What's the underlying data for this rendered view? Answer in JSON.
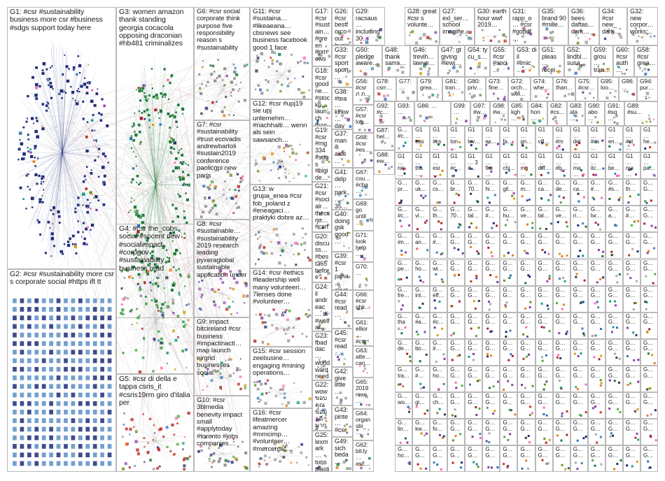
{
  "colors": {
    "background": "#ffffff",
    "box_border": "#b9b9b9",
    "edge": "#c7c7c7",
    "palette": [
      "#1f2d7a",
      "#2f6fb5",
      "#1e7a3a",
      "#58a84a",
      "#c0392b",
      "#7d3c98",
      "#d4a017",
      "#16a085",
      "#8e44ad",
      "#e67e22",
      "#2c3e50",
      "#a9a9a9",
      "#ff69b4",
      "#6b8e23",
      "#4682b4",
      "#b22222"
    ]
  },
  "groups": [
    {
      "id": "G1",
      "text": "G1: #csr #sustainability business more csr #business #sdgs support today here",
      "color": "#1f2d7a",
      "kind": "ring"
    },
    {
      "id": "G2",
      "text": "G2: #csr #sustainability more csr s corporate social #https ift tt",
      "color": "#3a6fb0",
      "kind": "gridnodes"
    },
    {
      "id": "G3",
      "text": "G3: women amazon thank standing georgia cocacola opposing draconian #hb481 criminalizes",
      "color": "#1e7a3a",
      "kind": "ring"
    },
    {
      "id": "G4",
      "text": "G4: #csr the_cobs social #socent new #socialimpact #corpgov #sustainability business read",
      "color": "#3b9a3f",
      "kind": "cloud"
    },
    {
      "id": "G5",
      "text": "G5: #csr di della e tappa csris_it #csris19rm giro d'italia per",
      "color": "#c0282b",
      "kind": "cloud"
    },
    {
      "id": "G6",
      "text": "G6: #csr social corporate think purpose five responsibility reason s #sustainability",
      "color": "#7a7a7a",
      "kind": "cloud"
    },
    {
      "id": "G7",
      "text": "G7: #csr #sustainability #trust ecovadis andrewbartoli #sustain2019 conference paolicgpi new paris",
      "color": "#888888",
      "kind": "cloud"
    },
    {
      "id": "G8",
      "text": "G8: #csr #sustainable… #sustainability 2019 research leading pyxeraglobal sustainable application under",
      "color": "#9b59b6",
      "kind": "cloud"
    },
    {
      "id": "G9",
      "text": "G9: impact bitcireland #csr business #impactinacti… map launch eirgrid businesses social",
      "color": "#8e8e8e",
      "kind": "cloud"
    },
    {
      "id": "G10",
      "text": "G10: #csr 3blmedia benevity impact small #applytoday #toronto #jobs companies…",
      "color": "#7d7d7d",
      "kind": "cloud"
    },
    {
      "id": "G11",
      "text": "G11: #csr #sustaina… #likeaeana… cbsnews see business facebook good 1 face",
      "color": "#888888",
      "kind": "cloud"
    },
    {
      "id": "G12",
      "text": "G12: #csr #upj19 sie upj unternehm… #nachhalti… wenn als sein sawsanch…",
      "color": "#999999",
      "kind": "cloud"
    },
    {
      "id": "G13",
      "text": "G13: w grupa_enea #csr fob_poland z #eneagaci… praktyki dobre az…",
      "color": "#999999",
      "kind": "cloud"
    },
    {
      "id": "G14",
      "text": "G14: #csr #ethics #leadership well many volunteeri… 7lenses done #volunteer…",
      "color": "#999999",
      "kind": "cloud"
    },
    {
      "id": "G15",
      "text": "G15: #csr session zeebusine… engaging #mining operations…",
      "color": "#999999",
      "kind": "cloud"
    },
    {
      "id": "G16",
      "text": "G16: #csr lifeatmercer amazing #mmcimp… #volunteer… #mercerca…",
      "color": "#999999",
      "kind": "cloud"
    },
    {
      "id": "G17",
      "text": "G17: #csr #sustain… #green #prnews… caelusg… 2019",
      "color": "#999999",
      "kind": "cloud"
    },
    {
      "id": "G18",
      "text": "G18: #csr goodne… #stockp… launch thank d day last…",
      "color": "#999999",
      "kind": "cloud"
    },
    {
      "id": "G19",
      "text": "G19: #csr #mg334 #sdgs #bigide… #sustain…",
      "color": "#999999",
      "kind": "cloud"
    },
    {
      "id": "G20",
      "text": "G20: discuss… #best365 before represe…",
      "color": "#999999",
      "kind": "cloud"
    },
    {
      "id": "G21",
      "text": "G21: #csr #socialr… thecsrjo… #csrtren… corporat…",
      "color": "#999999",
      "kind": "cloud"
    },
    {
      "id": "G22",
      "text": "G22: wow ขอบคุณ ข้อมูลดีมาก ใจ ผู้…",
      "color": "#999999",
      "kind": "cloud"
    },
    {
      "id": "G23",
      "text": "G23: fbaddac… world want need…",
      "color": "#999999",
      "kind": "cloud"
    },
    {
      "id": "G24",
      "text": "G24: il andreac… di #welfar… e…",
      "color": "#999999",
      "kind": "cloud"
    },
    {
      "id": "G25",
      "text": "G25: lexmark… tons plastic…",
      "color": "#999999",
      "kind": "cloud"
    },
    {
      "id": "G26",
      "text": "G26: #csr bestforco out business…",
      "color": "#999999",
      "kind": "cloud"
    },
    {
      "id": "G27",
      "text": "G27: exl_ser… school imagine…",
      "color": "#999999",
      "kind": "cloud"
    },
    {
      "id": "G28",
      "text": "G28: great #csr s volunte…",
      "color": "#999999",
      "kind": "cloud"
    },
    {
      "id": "G29",
      "text": "G29: racsaus… including 30…",
      "color": "#999999",
      "kind": "cloud"
    },
    {
      "id": "G30",
      "text": "G30: earth hour wwf 2019…",
      "color": "#999999",
      "kind": "cloud"
    },
    {
      "id": "G31",
      "text": "G31: rapp_o… #csr #goodf…",
      "color": "#999999",
      "kind": "cloud"
    },
    {
      "id": "G32",
      "text": "G32: new corpor… works…",
      "color": "#999999",
      "kind": "cloud"
    },
    {
      "id": "G33",
      "text": "G33: #csr sport sport…",
      "color": "#999999",
      "kind": "cloud"
    },
    {
      "id": "G34",
      "text": "G34: #csr new_ dark…",
      "color": "#999999",
      "kind": "cloud"
    },
    {
      "id": "G35",
      "text": "G35: brand 90 #mille…",
      "color": "#999999",
      "kind": "cloud"
    },
    {
      "id": "G36",
      "text": "G36: bees daftas… dark…",
      "color": "#999999",
      "kind": "cloud"
    },
    {
      "id": "G37",
      "text": "G37: man ili aide…",
      "color": "#999999",
      "kind": "cloud"
    },
    {
      "id": "G38",
      "text": "G38: #tea… kirkw… day…",
      "color": "#999999",
      "kind": "cloud"
    },
    {
      "id": "G39",
      "text": "G39: #csr 1 pana… elect…",
      "color": "#999999",
      "kind": "cloud"
    },
    {
      "id": "G40",
      "text": "G40: doing gsk good…",
      "color": "#999999",
      "kind": "cloud"
    },
    {
      "id": "G41",
      "text": "G41: delp… park… 35…",
      "color": "#999999",
      "kind": "cloud"
    },
    {
      "id": "G42",
      "text": "G42: give little…",
      "color": "#999999",
      "kind": "cloud"
    },
    {
      "id": "G43",
      "text": "G43: pinte… #csr…",
      "color": "#999999",
      "kind": "cloud"
    },
    {
      "id": "G44",
      "text": "G44: #csr read…",
      "color": "#999999",
      "kind": "cloud"
    },
    {
      "id": "G45",
      "text": "G45: #csr read…",
      "color": "#999999",
      "kind": "cloud"
    },
    {
      "id": "G46",
      "text": "G46: trevih… lawye…",
      "color": "#999999",
      "kind": "cloud"
    },
    {
      "id": "G47",
      "text": "G47: gt giving #lewi…",
      "color": "#999999",
      "kind": "cloud"
    },
    {
      "id": "G48",
      "text": "G48: thank sams…",
      "color": "#999999",
      "kind": "cloud"
    },
    {
      "id": "G49",
      "text": "G49: sich beda…",
      "color": "#999999",
      "kind": "cloud"
    },
    {
      "id": "G50",
      "text": "G50: pledge aware…",
      "color": "#999999",
      "kind": "cloud"
    },
    {
      "id": "G51",
      "text": "G51: pleas… recei…",
      "color": "#999999",
      "kind": "cloud"
    },
    {
      "id": "G52",
      "text": "G52: lindbl… susa…",
      "color": "#999999",
      "kind": "cloud"
    },
    {
      "id": "G53",
      "text": "G53: di il #lmic…",
      "color": "#999999",
      "kind": "cloud"
    },
    {
      "id": "G54",
      "text": "G54: ty cu_s…",
      "color": "#999999",
      "kind": "cloud"
    },
    {
      "id": "G55",
      "text": "G55: #csr #soci…",
      "color": "#999999",
      "kind": "cloud"
    },
    {
      "id": "G56",
      "text": "G56: #csr ภ ภ…",
      "color": "#999999",
      "kind": "cloud"
    },
    {
      "id": "G57",
      "text": "G57: #csr log…",
      "color": "#999999",
      "kind": "cloud"
    },
    {
      "id": "G58",
      "text": "G58: #csr grea…",
      "color": "#999999",
      "kind": "cloud"
    },
    {
      "id": "G59",
      "text": "G59: grou… tran…",
      "color": "#999999",
      "kind": "cloud"
    },
    {
      "id": "G60",
      "text": "G60: #csr auth…",
      "color": "#999999",
      "kind": "cloud"
    },
    {
      "id": "G61",
      "text": "G61: ellior… #csr…",
      "color": "#999999",
      "kind": "cloud"
    },
    {
      "id": "G62",
      "text": "G62: bit.ly… asc…",
      "color": "#999999",
      "kind": "cloud"
    },
    {
      "id": "G63",
      "text": "G63: atte… can…",
      "color": "#999999",
      "kind": "cloud"
    },
    {
      "id": "G64",
      "text": "G64: organ sbi_…",
      "color": "#999999",
      "kind": "cloud"
    },
    {
      "id": "G65",
      "text": "G65: 2019 rese…",
      "color": "#999999",
      "kind": "cloud"
    },
    {
      "id": "G66",
      "text": "G66: #csr nhk…",
      "color": "#999999",
      "kind": "cloud"
    },
    {
      "id": "G67",
      "text": "G67: cou… #cha…",
      "color": "#999999",
      "kind": "cloud"
    },
    {
      "id": "G68",
      "text": "G68: #csr #es…",
      "color": "#999999",
      "kind": "cloud"
    },
    {
      "id": "G69",
      "text": "G69: go until…",
      "color": "#999999",
      "kind": "cloud"
    },
    {
      "id": "G70",
      "text": "G70: …",
      "color": "#999999",
      "kind": "cloud"
    },
    {
      "id": "G71",
      "text": "G71: look help…",
      "color": "#999999",
      "kind": "cloud"
    },
    {
      "id": "G72",
      "text": "G72: orch… wel…",
      "color": "#999999",
      "kind": "cloud"
    },
    {
      "id": "G73",
      "text": "G73: fine…",
      "color": "#999999",
      "kind": "cloud"
    },
    {
      "id": "G74",
      "text": "G74: whe…",
      "color": "#999999",
      "kind": "cloud"
    },
    {
      "id": "G75",
      "text": "G75: #csr…",
      "color": "#999999",
      "kind": "cloud"
    },
    {
      "id": "G76",
      "text": "G76: than…",
      "color": "#999999",
      "kind": "cloud"
    },
    {
      "id": "G77",
      "text": "G77: …",
      "color": "#999999",
      "kind": "cloud"
    },
    {
      "id": "G78",
      "text": "G78: csrr…",
      "color": "#999999",
      "kind": "cloud"
    },
    {
      "id": "G79",
      "text": "G79: grea…",
      "color": "#999999",
      "kind": "cloud"
    },
    {
      "id": "G80",
      "text": "G80: priv…",
      "color": "#999999",
      "kind": "cloud"
    },
    {
      "id": "G81",
      "text": "G81: tran…",
      "color": "#999999",
      "kind": "cloud"
    },
    {
      "id": "G82",
      "text": "G82: #cs…",
      "color": "#999999",
      "kind": "cloud"
    },
    {
      "id": "G83",
      "text": "G83: ala…",
      "color": "#999999",
      "kind": "cloud"
    },
    {
      "id": "G84",
      "text": "G84: hon…",
      "color": "#999999",
      "kind": "cloud"
    },
    {
      "id": "G85",
      "text": "G85: kgh…",
      "color": "#999999",
      "kind": "cloud"
    },
    {
      "id": "G86",
      "text": "G86: …",
      "color": "#999999",
      "kind": "cloud"
    },
    {
      "id": "G87",
      "text": "G87: hel…",
      "color": "#999999",
      "kind": "cloud"
    },
    {
      "id": "G88",
      "text": "G88: ew…",
      "color": "#999999",
      "kind": "cloud"
    },
    {
      "id": "G89",
      "text": "G89: #su…",
      "color": "#999999",
      "kind": "cloud"
    },
    {
      "id": "G90",
      "text": "G90: abo…",
      "color": "#999999",
      "kind": "cloud"
    },
    {
      "id": "G91",
      "text": "G91: #sq…",
      "color": "#999999",
      "kind": "cloud"
    },
    {
      "id": "G92",
      "text": "G92: #c…",
      "color": "#999999",
      "kind": "cloud"
    },
    {
      "id": "G93",
      "text": "G93: …",
      "color": "#999999",
      "kind": "cloud"
    },
    {
      "id": "G94",
      "text": "G94: pur…",
      "color": "#999999",
      "kind": "cloud"
    },
    {
      "id": "G95",
      "text": "G95: loo…",
      "color": "#999999",
      "kind": "cloud"
    },
    {
      "id": "G96",
      "text": "G96: …",
      "color": "#999999",
      "kind": "cloud"
    },
    {
      "id": "G97",
      "text": "G97: #w…",
      "color": "#999999",
      "kind": "cloud"
    },
    {
      "id": "G98",
      "text": "G98: #w…",
      "color": "#999999",
      "kind": "cloud"
    },
    {
      "id": "G99",
      "text": "G99: …",
      "color": "#999999",
      "kind": "cloud"
    }
  ],
  "grid_tiles": [
    "G… #c…",
    "G1… eas…",
    "G1… #cs…",
    "G1… ton…",
    "G1… lev…",
    "G1… ex…",
    "G1… fa…",
    "G1… gn…",
    "G1… vill…",
    "G1… #m…",
    "G1… del…",
    "G1… #cs…",
    "G1… en…",
    "G1… #st…",
    "G1… he…",
    "G1… nie…",
    "G1… tha…",
    "G1… esr…",
    "G1… #c…",
    "G1… 3 #…",
    "G1… firs…",
    "G1… chi…",
    "G1… mo…",
    "G1… diff…",
    "G1… #b…",
    "G1… ma…",
    "G1… itc…",
    "G1… be…",
    "G1… ma…",
    "G1… pa…",
    "G… pr…",
    "G… uk…",
    "G… cs…",
    "G… br…",
    "G… 70…",
    "G… hi…",
    "G… gil…",
    "G… m…",
    "G… ca…",
    "G… de…",
    "G… ca…",
    "G… #…",
    "G… #s…",
    "G… th…",
    "G… G…",
    "G… #c…",
    "G… vi…",
    "G… th…",
    "G… 70…",
    "G… tal…",
    "G… #…",
    "G… hu…",
    "G… ve…",
    "G… tal…",
    "G… ve…",
    "G… ri…",
    "G… tw…",
    "G… a…",
    "G… #…",
    "G… G…",
    "G… #n…",
    "G… an…",
    "G… #…",
    "G… G…",
    "G… G…",
    "G… G…",
    "G… G…",
    "G… G…",
    "G… G…",
    "G… G…",
    "G… G…",
    "G… G…",
    "G… G…",
    "G… G…",
    "G… G…",
    "G… pe…",
    "G… ho…",
    "G… wi…",
    "G… G…",
    "G… G…",
    "G… G…",
    "G… G…",
    "G… G…",
    "G… G…",
    "G… G…",
    "G… G…",
    "G… G…",
    "G… G…",
    "G… G…",
    "G… G…",
    "G… fre…",
    "G… int…",
    "G… eff…",
    "G… G…",
    "G… G…",
    "G… G…",
    "G… G…",
    "G… G…",
    "G… G…",
    "G… G…",
    "G… G…",
    "G… G…",
    "G… G…",
    "G… G…",
    "G… G…",
    "G… tha…",
    "G… #a…",
    "G… #c…",
    "G… G…",
    "G… G…",
    "G… G…",
    "G… G…",
    "G… G…",
    "G… G…",
    "G… G…",
    "G… G…",
    "G… G…",
    "G… G…",
    "G… G…",
    "G… G…",
    "G… de…",
    "G… bo…",
    "G… #…",
    "G… G…",
    "G… G…",
    "G… G…",
    "G… G…",
    "G… G…",
    "G… G…",
    "G… G…",
    "G… G…",
    "G… G…",
    "G… G…",
    "G… G…",
    "G… G…",
    "G… tra…",
    "G… #…",
    "G… ho…",
    "G… G…",
    "G… G…",
    "G… G…",
    "G… G…",
    "G… G…",
    "G… G…",
    "G… G…",
    "G… G…",
    "G… G…",
    "G… G…",
    "G… G…",
    "G… G…",
    "G… wo…",
    "G… gi…",
    "G… ch…",
    "G… G…",
    "G… G…",
    "G… G…",
    "G… G…",
    "G… G…",
    "G… G…",
    "G… G…",
    "G… G…",
    "G… G…",
    "G… G…",
    "G… G…",
    "G… G…",
    "G… lin…",
    "G… kw…",
    "G… fo…",
    "G… G…",
    "G… G…",
    "G… G…",
    "G… G…",
    "G… G…",
    "G… G…",
    "G… G…",
    "G… G…",
    "G… G…",
    "G… G…",
    "G… G…",
    "G… G…",
    "G… ho…",
    "G… G…",
    "G… G…",
    "G… G…",
    "G… G…",
    "G… G…",
    "G… G…",
    "G… G…",
    "G… G…",
    "G… G…",
    "G… G…",
    "G… G…",
    "G… G…",
    "G… G…",
    "G… G…"
  ]
}
